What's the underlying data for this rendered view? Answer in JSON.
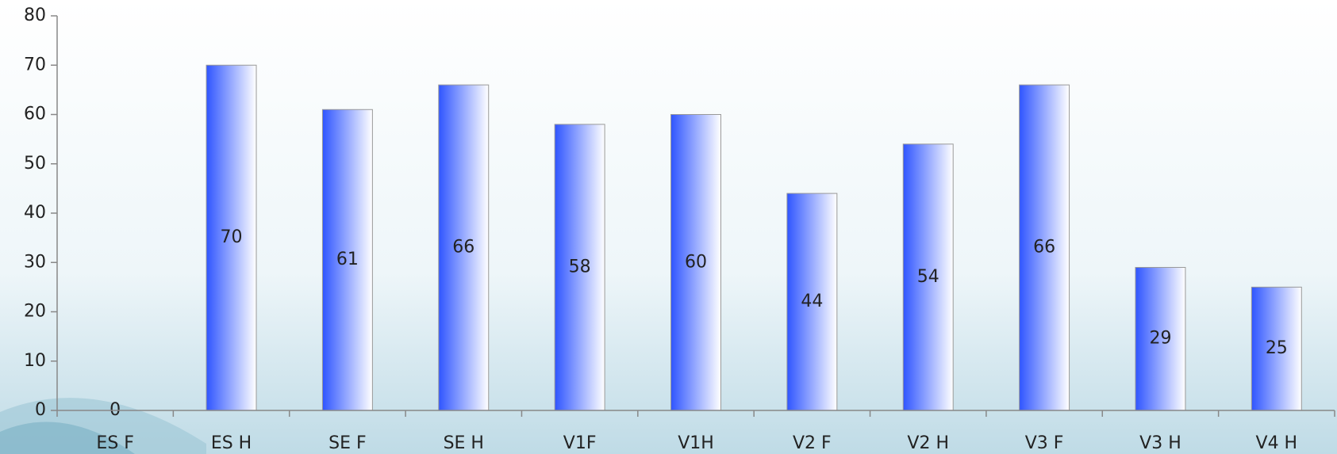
{
  "chart_data": {
    "type": "bar",
    "categories": [
      "ES F",
      "ES H",
      "SE F",
      "SE H",
      "V1F",
      "V1H",
      "V2 F",
      "V2 H",
      "V3 F",
      "V3 H",
      "V4 H"
    ],
    "values": [
      0,
      70,
      61,
      66,
      58,
      60,
      44,
      54,
      66,
      29,
      25
    ],
    "color": "#3a5cff",
    "ylim": [
      0,
      80
    ],
    "yticks": [
      0,
      10,
      20,
      30,
      40,
      50,
      60,
      70,
      80
    ],
    "grid": false
  }
}
